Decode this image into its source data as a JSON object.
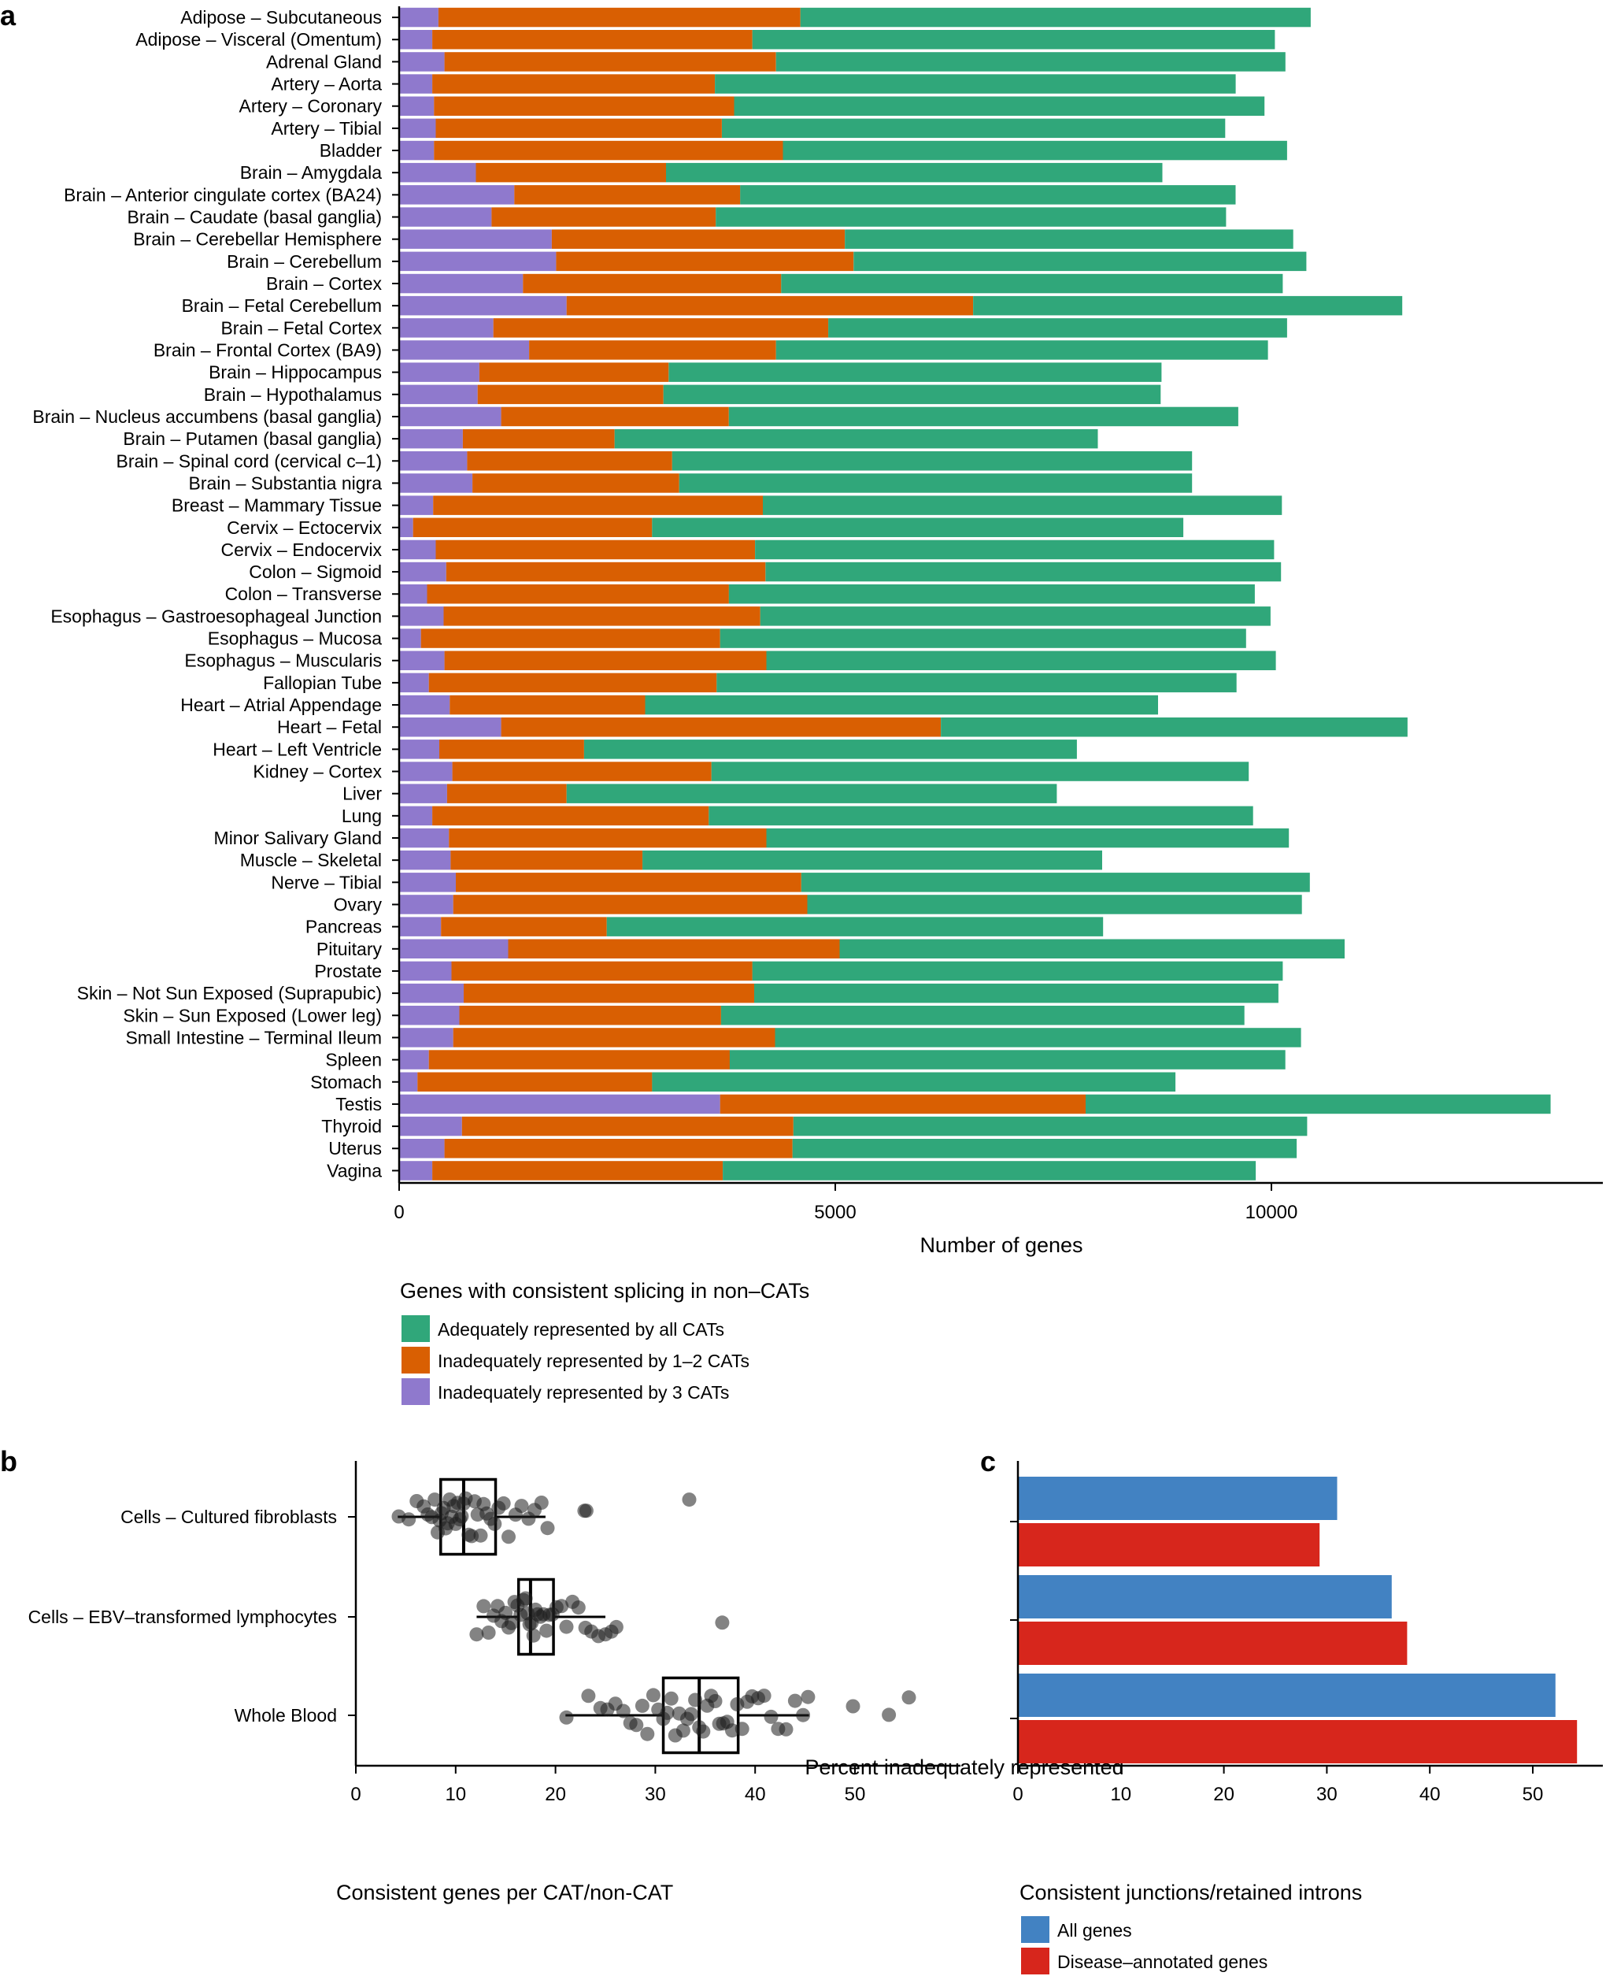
{
  "panels": {
    "a": "a",
    "b": "b",
    "c": "c"
  },
  "chart_data": [
    {
      "type": "bar",
      "stacked": true,
      "orientation": "horizontal",
      "panel": "a",
      "xlabel": "Number of genes",
      "xticks": [
        0,
        5000,
        10000
      ],
      "xlim": [
        0,
        13700
      ],
      "legend_title": "Genes with consistent splicing in non–CATs",
      "colors": {
        "three": "#8f79cd",
        "onetwo": "#d95f02",
        "all": "#30a77a"
      },
      "series": [
        {
          "name": "Inadequately represented by 3 CATs",
          "key": "three"
        },
        {
          "name": "Inadequately represented by 1–2 CATs",
          "key": "onetwo"
        },
        {
          "name": "Adequately represented by all CATs",
          "key": "all"
        }
      ],
      "legend_order": [
        "all",
        "onetwo",
        "three"
      ],
      "categories": [
        {
          "label": "Adipose – Subcutaneous",
          "three": 450,
          "onetwo": 4150,
          "all": 5850
        },
        {
          "label": "Adipose – Visceral (Omentum)",
          "three": 380,
          "onetwo": 3670,
          "all": 5990
        },
        {
          "label": "Adrenal Gland",
          "three": 520,
          "onetwo": 3800,
          "all": 5840
        },
        {
          "label": "Artery – Aorta",
          "three": 380,
          "onetwo": 3240,
          "all": 5970
        },
        {
          "label": "Artery – Coronary",
          "three": 400,
          "onetwo": 3440,
          "all": 6080
        },
        {
          "label": "Artery – Tibial",
          "three": 420,
          "onetwo": 3280,
          "all": 5770
        },
        {
          "label": "Bladder",
          "three": 400,
          "onetwo": 4000,
          "all": 5780
        },
        {
          "label": "Brain – Amygdala",
          "three": 880,
          "onetwo": 2180,
          "all": 5690
        },
        {
          "label": "Brain – Anterior cingulate cortex (BA24)",
          "three": 1320,
          "onetwo": 2590,
          "all": 5680
        },
        {
          "label": "Brain – Caudate (basal ganglia)",
          "three": 1060,
          "onetwo": 2570,
          "all": 5850
        },
        {
          "label": "Brain – Cerebellar Hemisphere",
          "three": 1750,
          "onetwo": 3360,
          "all": 5140
        },
        {
          "label": "Brain – Cerebellum",
          "three": 1800,
          "onetwo": 3410,
          "all": 5190
        },
        {
          "label": "Brain – Cortex",
          "three": 1420,
          "onetwo": 2960,
          "all": 5750
        },
        {
          "label": "Brain – Fetal Cerebellum",
          "three": 1920,
          "onetwo": 4660,
          "all": 4920
        },
        {
          "label": "Brain – Fetal Cortex",
          "three": 1080,
          "onetwo": 3840,
          "all": 5260
        },
        {
          "label": "Brain – Frontal Cortex (BA9)",
          "three": 1490,
          "onetwo": 2830,
          "all": 5640
        },
        {
          "label": "Brain – Hippocampus",
          "three": 920,
          "onetwo": 2170,
          "all": 5650
        },
        {
          "label": "Brain – Hypothalamus",
          "three": 900,
          "onetwo": 2130,
          "all": 5700
        },
        {
          "label": "Brain – Nucleus accumbens (basal ganglia)",
          "three": 1170,
          "onetwo": 2610,
          "all": 5840
        },
        {
          "label": "Brain – Putamen (basal ganglia)",
          "three": 730,
          "onetwo": 1740,
          "all": 5540
        },
        {
          "label": "Brain – Spinal cord (cervical c–1)",
          "three": 780,
          "onetwo": 2350,
          "all": 5960
        },
        {
          "label": "Brain – Substantia nigra",
          "three": 840,
          "onetwo": 2370,
          "all": 5880
        },
        {
          "label": "Breast – Mammary Tissue",
          "three": 390,
          "onetwo": 3780,
          "all": 5950
        },
        {
          "label": "Cervix – Ectocervix",
          "three": 160,
          "onetwo": 2740,
          "all": 6090
        },
        {
          "label": "Cervix – Endocervix",
          "three": 420,
          "onetwo": 3660,
          "all": 5950
        },
        {
          "label": "Colon – Sigmoid",
          "three": 540,
          "onetwo": 3660,
          "all": 5910
        },
        {
          "label": "Colon – Transverse",
          "three": 320,
          "onetwo": 3460,
          "all": 6030
        },
        {
          "label": "Esophagus – Gastroesophageal Junction",
          "three": 510,
          "onetwo": 3630,
          "all": 5850
        },
        {
          "label": "Esophagus – Mucosa",
          "three": 250,
          "onetwo": 3430,
          "all": 6030
        },
        {
          "label": "Esophagus – Muscularis",
          "three": 520,
          "onetwo": 3690,
          "all": 5840
        },
        {
          "label": "Fallopian Tube",
          "three": 340,
          "onetwo": 3300,
          "all": 5960
        },
        {
          "label": "Heart – Atrial Appendage",
          "three": 580,
          "onetwo": 2240,
          "all": 5880
        },
        {
          "label": "Heart – Fetal",
          "three": 1170,
          "onetwo": 5040,
          "all": 5350
        },
        {
          "label": "Heart – Left Ventricle",
          "three": 460,
          "onetwo": 1660,
          "all": 5650
        },
        {
          "label": "Kidney – Cortex",
          "three": 610,
          "onetwo": 2970,
          "all": 6160
        },
        {
          "label": "Liver",
          "three": 550,
          "onetwo": 1370,
          "all": 5620
        },
        {
          "label": "Lung",
          "three": 380,
          "onetwo": 3170,
          "all": 6240
        },
        {
          "label": "Minor Salivary Gland",
          "three": 570,
          "onetwo": 3640,
          "all": 5990
        },
        {
          "label": "Muscle – Skeletal",
          "three": 590,
          "onetwo": 2200,
          "all": 5270
        },
        {
          "label": "Nerve – Tibial",
          "three": 650,
          "onetwo": 3960,
          "all": 5830
        },
        {
          "label": "Ovary",
          "three": 620,
          "onetwo": 4060,
          "all": 5670
        },
        {
          "label": "Pancreas",
          "three": 480,
          "onetwo": 1900,
          "all": 5690
        },
        {
          "label": "Pituitary",
          "three": 1250,
          "onetwo": 3800,
          "all": 5790
        },
        {
          "label": "Prostate",
          "three": 600,
          "onetwo": 3450,
          "all": 6080
        },
        {
          "label": "Skin – Not Sun Exposed (Suprapubic)",
          "three": 740,
          "onetwo": 3330,
          "all": 6010
        },
        {
          "label": "Skin – Sun Exposed (Lower leg)",
          "three": 690,
          "onetwo": 3000,
          "all": 6000
        },
        {
          "label": "Small Intestine – Terminal Ileum",
          "three": 620,
          "onetwo": 3690,
          "all": 6030
        },
        {
          "label": "Spleen",
          "three": 340,
          "onetwo": 3450,
          "all": 6370
        },
        {
          "label": "Stomach",
          "three": 210,
          "onetwo": 2690,
          "all": 6000
        },
        {
          "label": "Testis",
          "three": 3680,
          "onetwo": 4190,
          "all": 5330
        },
        {
          "label": "Thyroid",
          "three": 720,
          "onetwo": 3800,
          "all": 5890
        },
        {
          "label": "Uterus",
          "three": 520,
          "onetwo": 3990,
          "all": 5780
        },
        {
          "label": "Vagina",
          "three": 380,
          "onetwo": 3330,
          "all": 6110
        }
      ]
    },
    {
      "type": "scatter",
      "subtype": "box-jitter",
      "panel": "b",
      "xlabel": "Percent inadequately represented",
      "xticks": [
        0,
        10,
        20,
        30,
        40,
        50
      ],
      "xlim": [
        0,
        57
      ],
      "caption": "Consistent genes per CAT/non-CAT",
      "categories": [
        {
          "label": "Cells – Cultured fibroblasts",
          "q1": 8.5,
          "median": 10.8,
          "q3": 14.0,
          "whisker_low": 4.2,
          "whisker_high": 19.0,
          "points": [
            4.3,
            5.3,
            6.1,
            6.8,
            7.2,
            7.6,
            7.9,
            8.2,
            8.4,
            8.6,
            8.8,
            9.0,
            9.2,
            9.4,
            9.6,
            9.8,
            10.0,
            10.2,
            10.4,
            10.6,
            10.8,
            11.0,
            11.3,
            11.6,
            11.9,
            12.2,
            12.5,
            12.8,
            13.1,
            13.5,
            13.9,
            14.3,
            14.8,
            15.3,
            16.0,
            16.6,
            17.3,
            17.9,
            18.6,
            19.2,
            22.9,
            23.1,
            33.4
          ]
        },
        {
          "label": "Cells – EBV–transformed lymphocytes",
          "q1": 16.3,
          "median": 17.5,
          "q3": 19.8,
          "whisker_low": 12.1,
          "whisker_high": 25.0,
          "points": [
            12.1,
            12.8,
            13.3,
            13.8,
            14.2,
            14.6,
            15.0,
            15.3,
            15.6,
            15.9,
            16.2,
            16.5,
            16.8,
            17.0,
            17.2,
            17.4,
            17.6,
            17.8,
            18.0,
            18.2,
            18.5,
            18.8,
            19.1,
            19.4,
            19.7,
            20.1,
            20.6,
            21.1,
            21.7,
            22.3,
            23.0,
            23.6,
            24.3,
            25.0,
            25.6,
            26.1,
            36.7
          ]
        },
        {
          "label": "Whole Blood",
          "q1": 30.8,
          "median": 34.4,
          "q3": 38.3,
          "whisker_low": 21.0,
          "whisker_high": 45.4,
          "points": [
            21.1,
            23.3,
            24.5,
            25.2,
            26.0,
            26.8,
            27.5,
            28.1,
            28.7,
            29.2,
            29.8,
            30.3,
            30.8,
            31.2,
            31.6,
            32.0,
            32.4,
            32.8,
            33.2,
            33.6,
            34.0,
            34.4,
            34.8,
            35.2,
            35.6,
            36.0,
            36.4,
            36.8,
            37.2,
            37.7,
            38.2,
            38.7,
            39.2,
            39.7,
            40.3,
            40.9,
            41.6,
            42.3,
            43.1,
            44.0,
            44.8,
            45.3,
            49.8,
            53.4,
            55.4
          ]
        }
      ]
    },
    {
      "type": "bar",
      "orientation": "horizontal",
      "panel": "c",
      "xticks": [
        0,
        10,
        20,
        30,
        40,
        50
      ],
      "xlim": [
        0,
        54.5
      ],
      "caption": "Consistent junctions/retained introns",
      "colors": {
        "all": "#4282c2",
        "disease": "#d7261c"
      },
      "series": [
        {
          "name": "All genes",
          "key": "all"
        },
        {
          "name": "Disease–annotated genes",
          "key": "disease"
        }
      ],
      "groups": [
        {
          "all": 31.0,
          "disease": 29.3
        },
        {
          "all": 36.3,
          "disease": 37.8
        },
        {
          "all": 52.2,
          "disease": 54.3
        }
      ]
    }
  ]
}
